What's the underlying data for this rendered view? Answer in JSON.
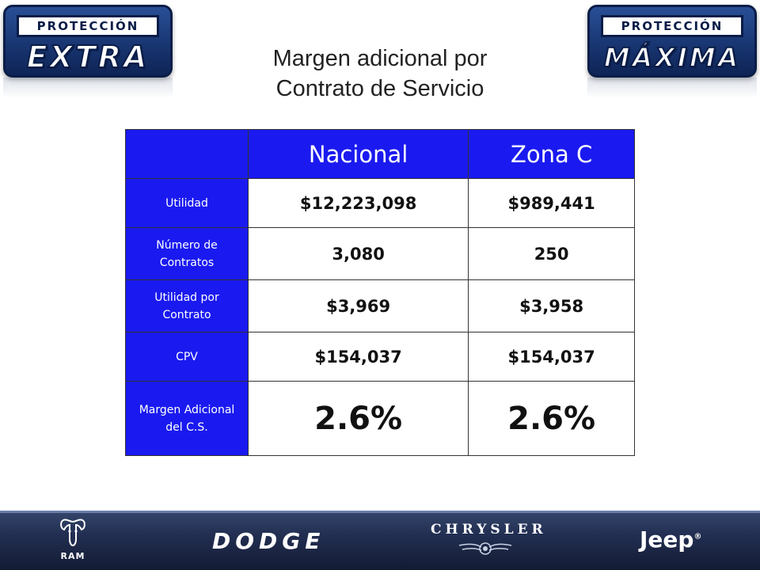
{
  "logos": {
    "left": {
      "top": "PROTECCIÓN",
      "bottom": "EXTRA"
    },
    "right": {
      "top": "PROTECCIÓN",
      "bottom": "MÁXIMA"
    }
  },
  "title": {
    "line1": "Margen adicional por",
    "line2": "Contrato de Servicio"
  },
  "table": {
    "columns": [
      "",
      "Nacional",
      "Zona C"
    ],
    "rows": [
      {
        "label": "Utilidad",
        "nacional": "$12,223,098",
        "zona_c": "$989,441"
      },
      {
        "label": "Número de Contratos",
        "nacional": "3,080",
        "zona_c": "250"
      },
      {
        "label": "Utilidad por Contrato",
        "nacional": "$3,969",
        "zona_c": "$3,958"
      },
      {
        "label": "CPV",
        "nacional": "$154,037",
        "zona_c": "$154,037"
      },
      {
        "label": "Margen Adicional del C.S.",
        "nacional": "2.6%",
        "zona_c": "2.6%"
      }
    ]
  },
  "footer": {
    "brands": [
      "RAM",
      "DODGE",
      "CHRYSLER",
      "Jeep"
    ],
    "jeep_mark": "®"
  },
  "colors": {
    "header_blue": "#1a1af0",
    "footer_navy": "#1b2644"
  }
}
